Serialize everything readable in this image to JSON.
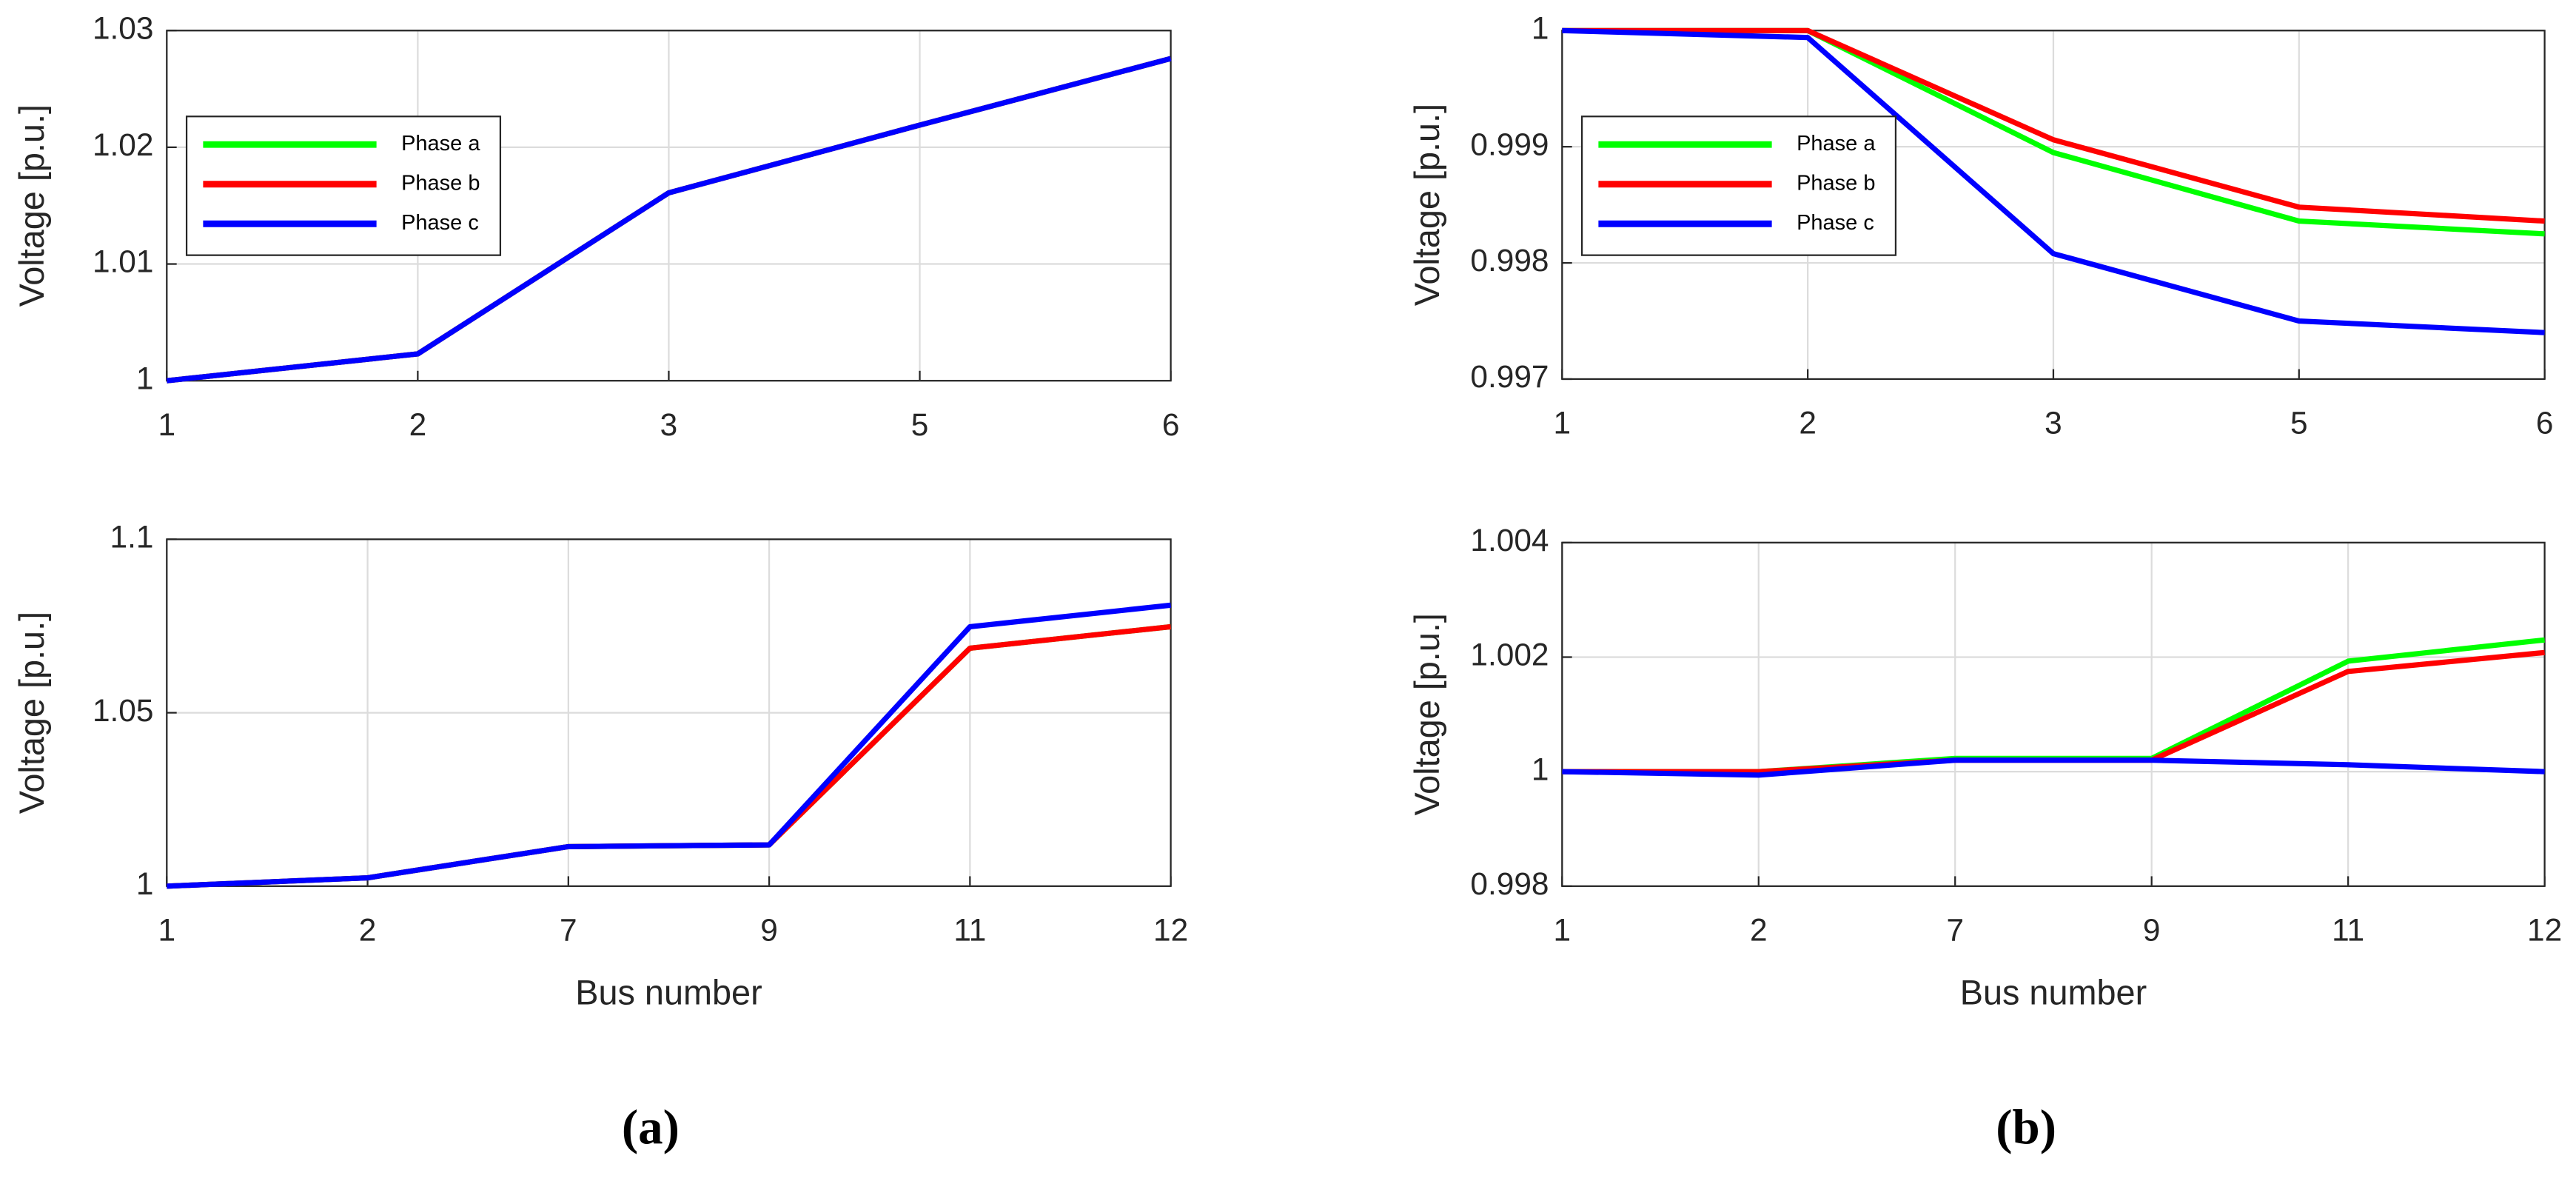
{
  "panels": [
    "(a)",
    "(b)"
  ],
  "chart_data": [
    {
      "type": "line",
      "ylabel": "Voltage [p.u.]",
      "categories": [
        "1",
        "2",
        "3",
        "5",
        "6"
      ],
      "ylim": [
        1,
        1.03
      ],
      "yticks": [
        1,
        1.01,
        1.02,
        1.03
      ],
      "grid": true,
      "legend": "upper left",
      "series": [
        {
          "name": "Phase a",
          "color": "#00ff00",
          "values": [
            1,
            1.0023,
            1.0161,
            1.0219,
            1.0276
          ]
        },
        {
          "name": "Phase b",
          "color": "#ff0000",
          "values": [
            1,
            1.0023,
            1.0161,
            1.0219,
            1.0276
          ]
        },
        {
          "name": "Phase c",
          "color": "#0000ff",
          "values": [
            1,
            1.0023,
            1.0161,
            1.0219,
            1.0276
          ]
        }
      ]
    },
    {
      "type": "line",
      "ylabel": "Voltage [p.u.]",
      "categories": [
        "1",
        "2",
        "3",
        "5",
        "6"
      ],
      "ylim": [
        0.997,
        1
      ],
      "yticks": [
        0.997,
        0.998,
        0.999,
        1
      ],
      "grid": true,
      "legend": "upper left",
      "series": [
        {
          "name": "Phase a",
          "color": "#00ff00",
          "values": [
            1,
            1,
            0.99895,
            0.99836,
            0.99825
          ]
        },
        {
          "name": "Phase b",
          "color": "#ff0000",
          "values": [
            1,
            1,
            0.99906,
            0.99848,
            0.99836
          ]
        },
        {
          "name": "Phase c",
          "color": "#0000ff",
          "values": [
            1,
            0.99994,
            0.99808,
            0.9975,
            0.9974
          ]
        }
      ]
    },
    {
      "type": "line",
      "ylabel": "Voltage [p.u.]",
      "xlabel": "Bus number",
      "categories": [
        "1",
        "2",
        "7",
        "9",
        "11",
        "12"
      ],
      "ylim": [
        1,
        1.1
      ],
      "yticks": [
        1,
        1.05,
        1.1
      ],
      "grid": true,
      "series": [
        {
          "name": "Phase a",
          "color": "#00ff00",
          "values": [
            1,
            1.0024,
            1.0114,
            1.0119,
            1.0686,
            1.0748
          ]
        },
        {
          "name": "Phase b",
          "color": "#ff0000",
          "values": [
            1,
            1.0024,
            1.0114,
            1.0119,
            1.0686,
            1.0748
          ]
        },
        {
          "name": "Phase c",
          "color": "#0000ff",
          "values": [
            1,
            1.0024,
            1.0114,
            1.0119,
            1.0748,
            1.081
          ]
        }
      ]
    },
    {
      "type": "line",
      "ylabel": "Voltage [p.u.]",
      "xlabel": "Bus number",
      "categories": [
        "1",
        "2",
        "7",
        "9",
        "11",
        "12"
      ],
      "ylim": [
        0.998,
        1.004
      ],
      "yticks": [
        0.998,
        1,
        1.002,
        1.004
      ],
      "grid": true,
      "series": [
        {
          "name": "Phase a",
          "color": "#00ff00",
          "values": [
            1,
            1,
            1.00023,
            1.00023,
            1.00193,
            1.0023
          ]
        },
        {
          "name": "Phase b",
          "color": "#ff0000",
          "values": [
            1,
            1,
            1.0002,
            1.0002,
            1.00175,
            1.00208
          ]
        },
        {
          "name": "Phase c",
          "color": "#0000ff",
          "values": [
            1,
            0.99994,
            1.0002,
            1.0002,
            1.00012,
            1
          ]
        }
      ]
    }
  ]
}
